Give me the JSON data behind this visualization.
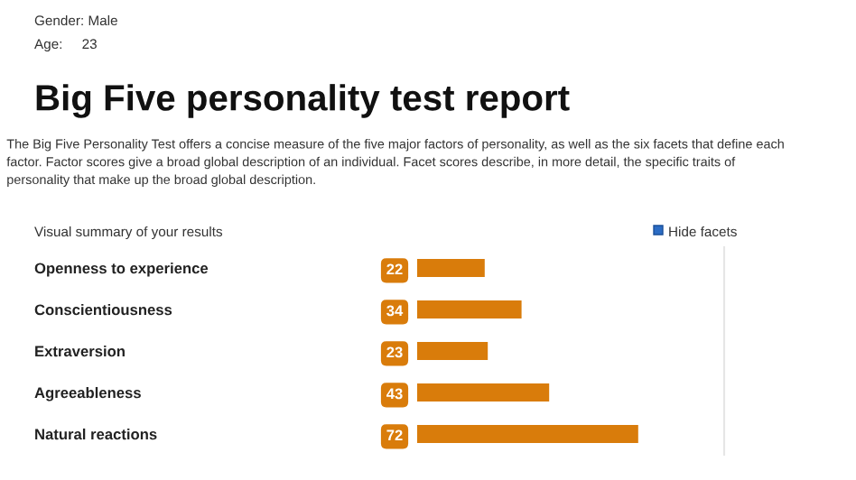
{
  "chart_data": {
    "type": "bar",
    "orientation": "horizontal",
    "title": "Big Five personality test report",
    "subtitle": "The Big Five Personality Test offers a concise measure of the five major factors of personality, as well as the six facets that define each factor. Factor scores give a broad global description of an individual. Facet scores describe, in more detail, the specific traits of personality that make up the broad global description.",
    "annotations": [
      "Gender: Male",
      "Age:     23",
      "Visual summary of your results",
      "Hide facets"
    ],
    "categories": [
      "Openness to experience",
      "Conscientiousness",
      "Extraversion",
      "Agreeableness",
      "Natural reactions"
    ],
    "values": [
      22,
      34,
      23,
      43,
      72
    ],
    "color": "#d97c0b",
    "xlim": [
      0,
      100
    ],
    "data_labels": true,
    "tick_labels": "y",
    "grid": false,
    "legend": false
  }
}
